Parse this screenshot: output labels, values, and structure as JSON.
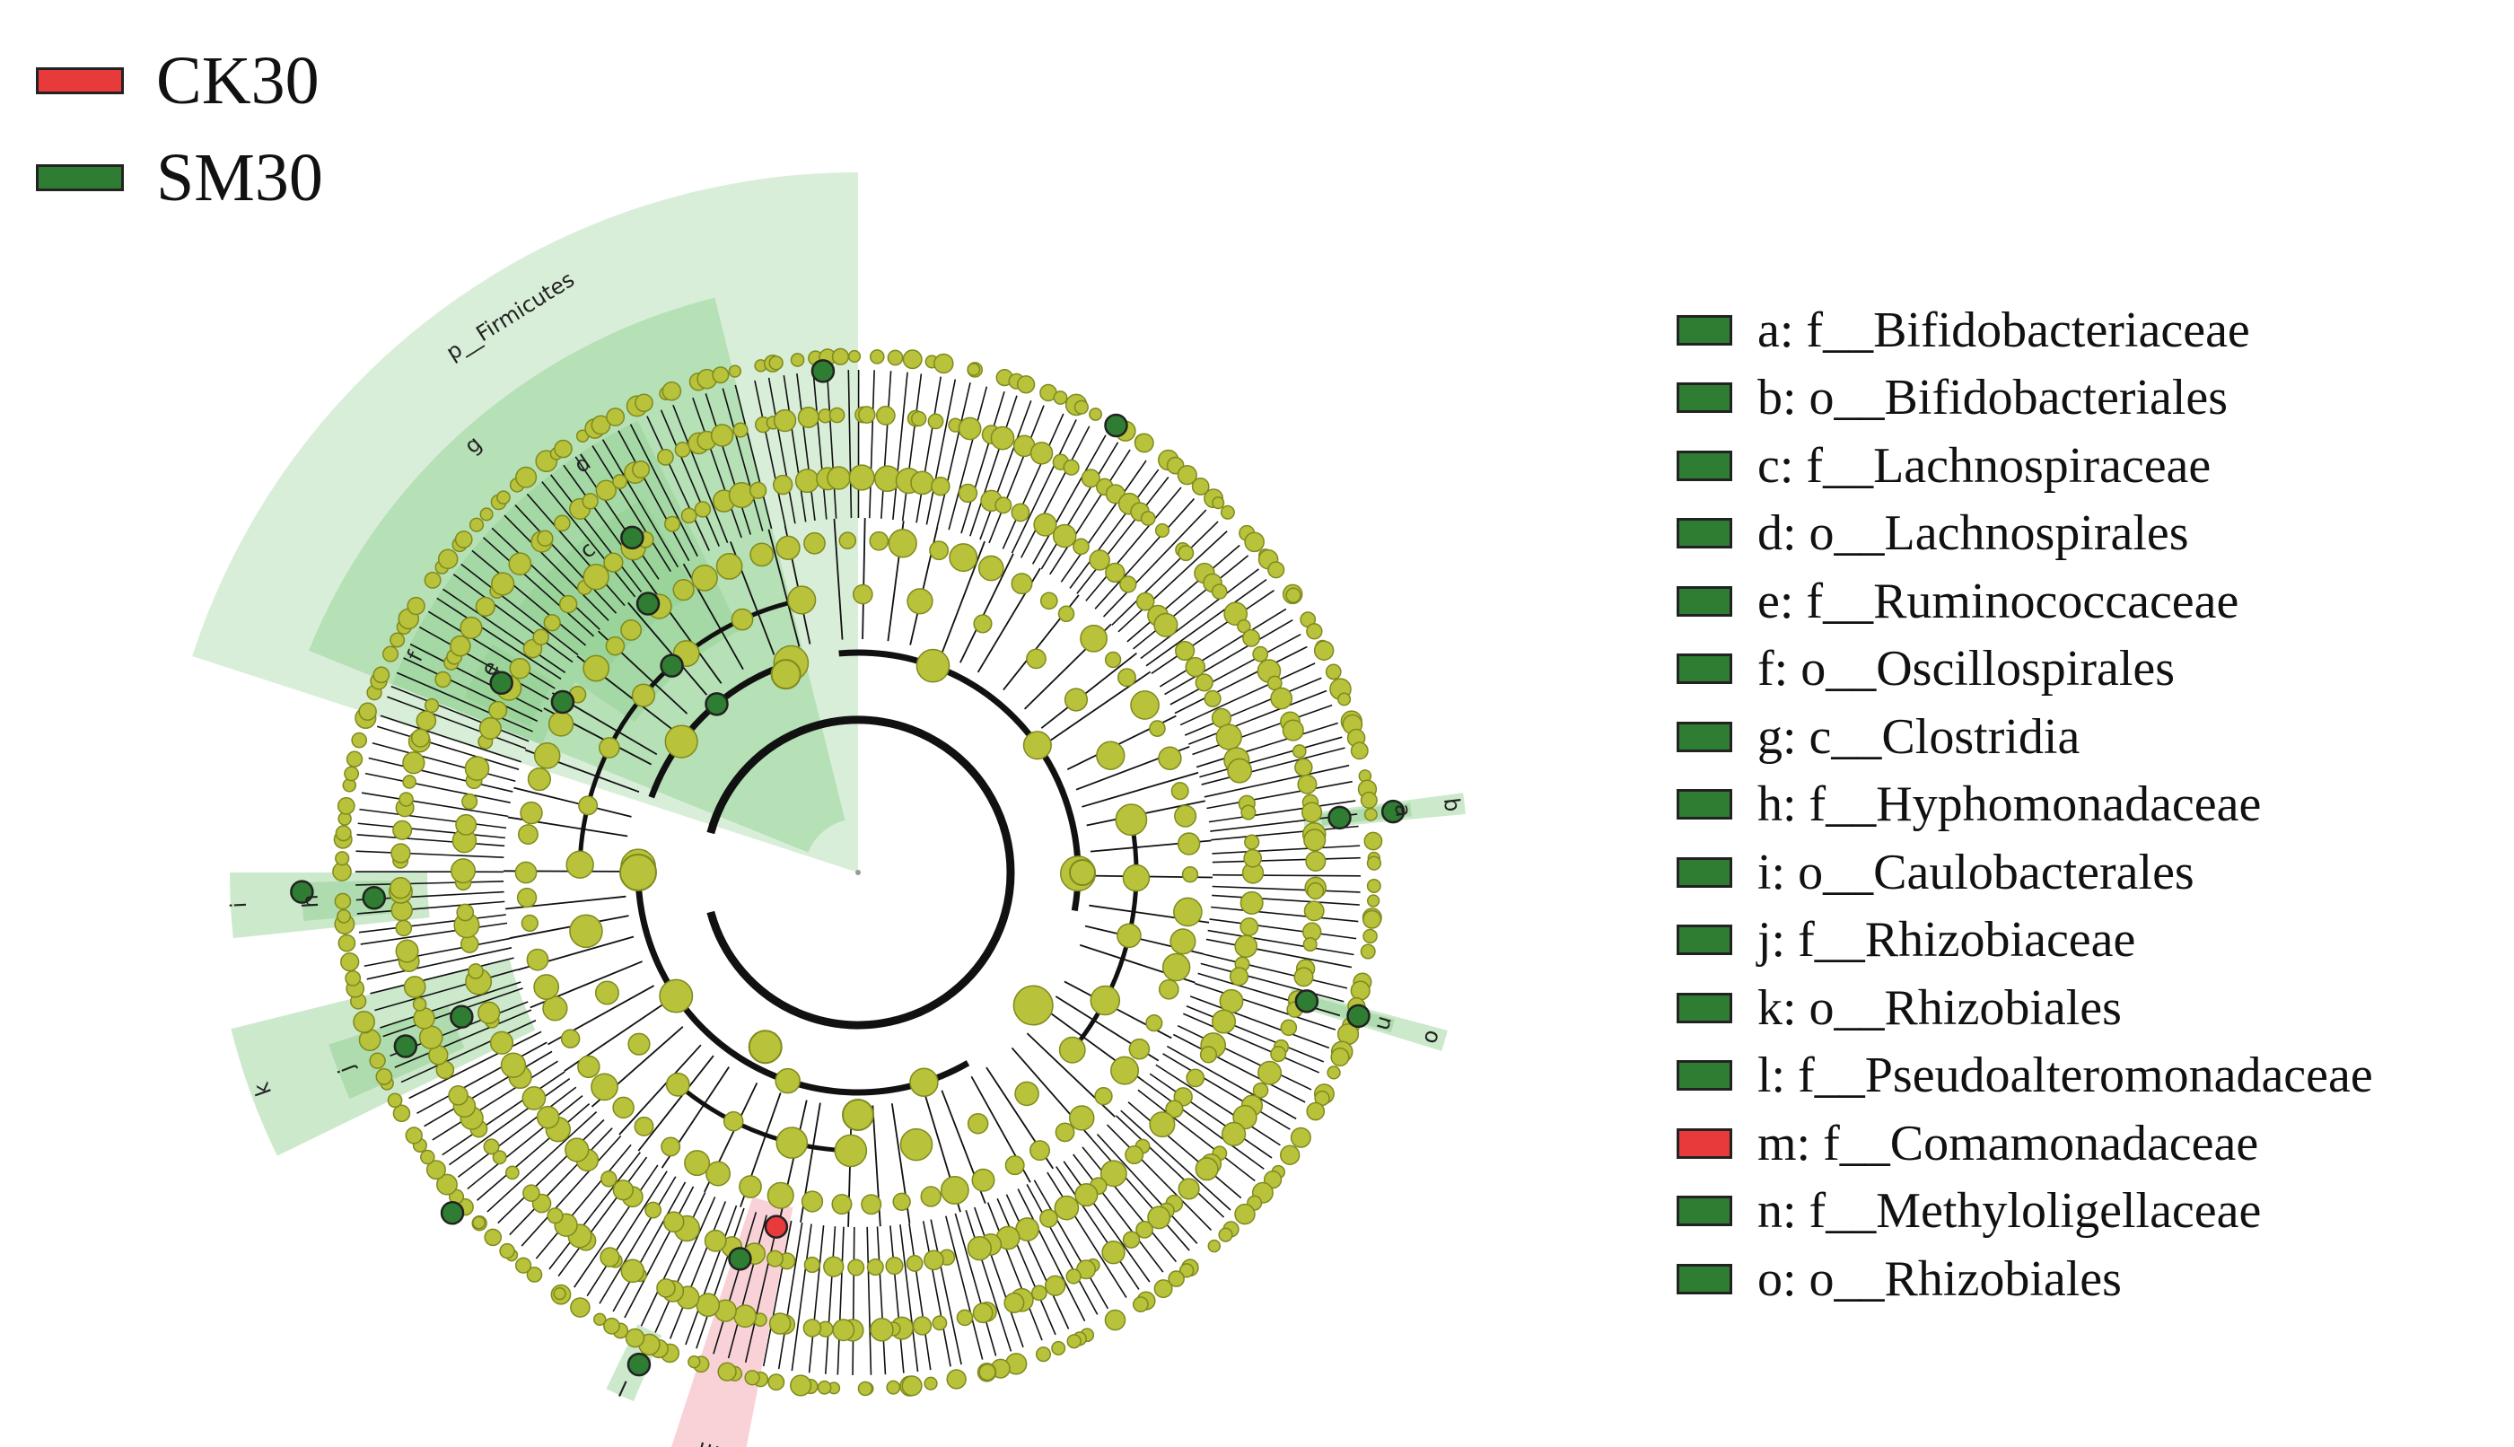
{
  "colors": {
    "ck30": "#e8393b",
    "sm30": "#2e7d32",
    "node_default": "#b8c23a",
    "node_stroke": "#7f8a1e",
    "edge": "#111111",
    "shade_green": "#8fcf8f",
    "shade_red": "#f4a6b0"
  },
  "groups": [
    {
      "label": "CK30",
      "color": "#e8393b"
    },
    {
      "label": "SM30",
      "color": "#2e7d32"
    }
  ],
  "cladogram": {
    "phylum_label": "p__Firmicutes",
    "clade_letters": [
      "a",
      "b",
      "c",
      "d",
      "e",
      "f",
      "g",
      "h",
      "i",
      "j",
      "k",
      "l",
      "m",
      "n",
      "o"
    ]
  },
  "key": [
    {
      "letter": "a",
      "text": "a: f__Bifidobacteriaceae",
      "group": "SM30"
    },
    {
      "letter": "b",
      "text": "b: o__Bifidobacteriales",
      "group": "SM30"
    },
    {
      "letter": "c",
      "text": "c: f__Lachnospiraceae",
      "group": "SM30"
    },
    {
      "letter": "d",
      "text": "d: o__Lachnospirales",
      "group": "SM30"
    },
    {
      "letter": "e",
      "text": "e: f__Ruminococcaceae",
      "group": "SM30"
    },
    {
      "letter": "f",
      "text": "f: o__Oscillospirales",
      "group": "SM30"
    },
    {
      "letter": "g",
      "text": "g: c__Clostridia",
      "group": "SM30"
    },
    {
      "letter": "h",
      "text": "h: f__Hyphomonadaceae",
      "group": "SM30"
    },
    {
      "letter": "i",
      "text": "i: o__Caulobacterales",
      "group": "SM30"
    },
    {
      "letter": "j",
      "text": "j: f__Rhizobiaceae",
      "group": "SM30"
    },
    {
      "letter": "k",
      "text": "k: o__Rhizobiales",
      "group": "SM30"
    },
    {
      "letter": "l",
      "text": "l: f__Pseudoalteromonadaceae",
      "group": "SM30"
    },
    {
      "letter": "m",
      "text": "m: f__Comamonadaceae",
      "group": "CK30"
    },
    {
      "letter": "n",
      "text": "n: f__Methyloligellaceae",
      "group": "SM30"
    },
    {
      "letter": "o",
      "text": "o: o__Rhizobiales",
      "group": "SM30"
    }
  ]
}
